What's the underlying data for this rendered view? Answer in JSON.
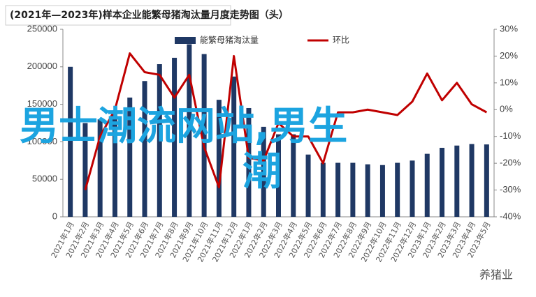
{
  "chart_data": {
    "type": "bar_line",
    "title": "(2021年—2023年)样本企业能繁母猪淘汰量月度走势图（头）",
    "categories": [
      "2021年1月",
      "2021年2月",
      "2021年3月",
      "2021年4月",
      "2021年5月",
      "2021年6月",
      "2021年7月",
      "2021年8月",
      "2021年9月",
      "2021年10月",
      "2021年11月",
      "2021年12月",
      "2022年1月",
      "2022年2月",
      "2022年3月",
      "2022年4月",
      "2022年5月",
      "2022年6月",
      "2022年7月",
      "2022年8月",
      "2022年9月",
      "2022年10月",
      "2022年11月",
      "2022年12月",
      "2023年1月",
      "2023年2月",
      "2023年3月",
      "2023年4月",
      "2023年5月"
    ],
    "series": [
      {
        "name": "能繁母猪淘汰量",
        "color": "#1f3864",
        "type": "bar",
        "values": [
          200000,
          125000,
          130000,
          140000,
          159000,
          181000,
          203500,
          212000,
          230000,
          217000,
          156000,
          187000,
          145000,
          120000,
          110000,
          110000,
          83000,
          72000,
          72000,
          72000,
          70000,
          69000,
          72000,
          75000,
          84000,
          92000,
          95000,
          97000,
          96500
        ]
      },
      {
        "name": "环比",
        "color": "#c00000",
        "type": "line",
        "axis": "y2",
        "values": [
          null,
          -30,
          -10,
          0,
          21,
          14,
          13,
          4.5,
          13,
          -14,
          -29,
          20,
          -18,
          -19,
          -5,
          -10,
          -10,
          -20,
          -1,
          -1,
          0,
          -1,
          -2,
          3,
          13.5,
          3.5,
          10,
          2,
          -1
        ]
      }
    ],
    "ylim": [
      0,
      250000
    ],
    "yticks": [
      0,
      50000,
      100000,
      150000,
      200000,
      250000
    ],
    "y2lim": [
      -40,
      30
    ],
    "y2ticks": [
      {
        "value": -40,
        "label": "-40%"
      },
      {
        "value": -30,
        "label": "-30%"
      },
      {
        "value": -20,
        "label": "-20%"
      },
      {
        "value": -10,
        "label": "-10%"
      },
      {
        "value": 0,
        "label": "0%"
      },
      {
        "value": 10,
        "label": "10%"
      },
      {
        "value": 20,
        "label": "20%"
      },
      {
        "value": 30,
        "label": "30%"
      }
    ],
    "legend": "top"
  },
  "overlay_lines": [
    "男士潮流网站,男生",
    "潮"
  ],
  "watermark": "养猪业"
}
